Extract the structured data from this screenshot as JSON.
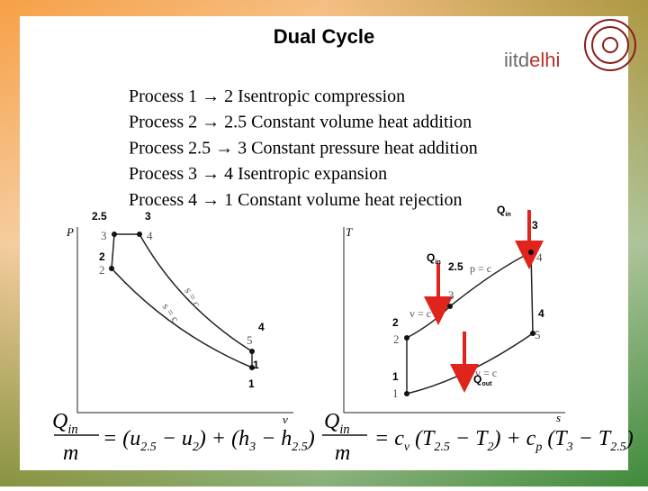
{
  "header": {
    "title": "Dual Cycle",
    "logo": [
      "iitd",
      "elhi"
    ]
  },
  "processes": [
    "Process 1 → 2  Isentropic compression",
    "Process 2 → 2.5  Constant volume heat addition",
    "Process 2.5 → 3  Constant pressure heat addition",
    "Process 3 → 4  Isentropic expansion",
    "Process 4 → 1  Constant volume heat rejection"
  ],
  "pv_diagram": {
    "axis_labels": [
      "P",
      "v"
    ],
    "state_labels": [
      "3",
      "4",
      "2",
      "5",
      "1"
    ],
    "curve_labels": [
      "s = c",
      "s = c"
    ],
    "overlay_labels": [
      "2.5",
      "3",
      "2",
      "4",
      "1",
      "1"
    ]
  },
  "ts_diagram": {
    "axis_labels": [
      "T",
      "s"
    ],
    "state_labels": [
      "4",
      "3",
      "2",
      "5",
      "1"
    ],
    "curve_labels": [
      "p = c",
      "v = c",
      "v = c"
    ],
    "overlay_labels": [
      {
        "t": "Q",
        "sub": "in"
      },
      "3",
      {
        "t": "Q",
        "sub": "in"
      },
      "2.5",
      "4",
      "2",
      "1",
      {
        "t": "Q",
        "sub": "out"
      }
    ]
  },
  "formulas": [
    {
      "num": {
        "t": "Q",
        "sub": "in"
      },
      "den": "m",
      "rhs": [
        {
          "t": "= (u",
          "sub": "2.5"
        },
        {
          "t": " − u",
          "sub": "2"
        },
        {
          "t": ") + (h",
          "sub": "3"
        },
        {
          "t": " − h",
          "sub": "2.5"
        },
        ")"
      ]
    },
    {
      "num": {
        "t": "Q",
        "sub": "in"
      },
      "den": "m",
      "rhs": [
        {
          "t": "= c",
          "sub": "v"
        },
        {
          "t": " (T",
          "sub": "2.5"
        },
        {
          "t": " − T",
          "sub": "2"
        },
        {
          "t": ") + c",
          "sub": "p"
        },
        {
          "t": " (T",
          "sub": "3"
        },
        {
          "t": " − T",
          "sub": "2.5"
        },
        ")"
      ]
    }
  ]
}
